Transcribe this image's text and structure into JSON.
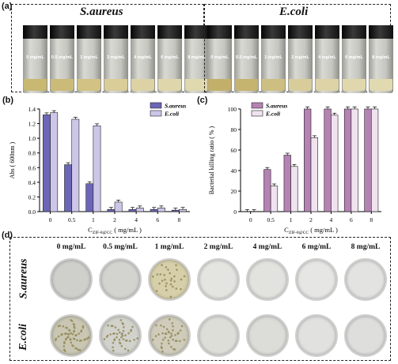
{
  "panels": {
    "a": "(a)",
    "b": "(b)",
    "c": "(c)",
    "d": "(d)"
  },
  "strains": {
    "aureus": "S.aureus",
    "coli": "E.coli"
  },
  "vial_concentrations": [
    "0 mg/mL",
    "0.5 mg/mL",
    "1 mg/mL",
    "2 mg/mL",
    "4 mg/mL",
    "6 mg/mL",
    "8 mg/mL"
  ],
  "plate_concentrations": [
    "0 mg/mL",
    "0.5 mg/mL",
    "1 mg/mL",
    "2 mg/mL",
    "4 mg/mL",
    "6 mg/mL",
    "8 mg/mL"
  ],
  "colors": {
    "aureus_bar": "#6b66b8",
    "coli_bar": "#cdc6e8",
    "killing_aureus": "#b582b4",
    "killing_coli": "#f0e3ef",
    "aureus_liquid": [
      "#c8b872",
      "#cbbb78",
      "#d2c283",
      "#d9cd98",
      "#dcd2a3",
      "#dfd6ab",
      "#e0d8ae"
    ],
    "coli_liquid": [
      "#c2b06a",
      "#c5b370",
      "#cdbf82",
      "#d8cd9a",
      "#ddd3a6",
      "#e0d7ad",
      "#e1d9b0"
    ]
  },
  "chart_data": [
    {
      "type": "bar",
      "categories": [
        "0",
        "0.5",
        "1",
        "2",
        "4",
        "6",
        "8"
      ],
      "series": [
        {
          "name": "S.aureus",
          "values": [
            1.32,
            0.64,
            0.38,
            0.03,
            0.03,
            0.03,
            0.02
          ]
        },
        {
          "name": "E.coli",
          "values": [
            1.35,
            1.26,
            1.17,
            0.13,
            0.05,
            0.05,
            0.03
          ]
        }
      ],
      "ylabel": "Abs ( 600nm )",
      "xlabel_main": "C",
      "xlabel_sub": "ZIF-8@CC",
      "xlabel_unit": " ( mg/mL )",
      "ylim": [
        0,
        1.4
      ],
      "yticks": [
        "0.0",
        "0.2",
        "0.4",
        "0.6",
        "0.8",
        "1.0",
        "1.2",
        "1.4"
      ],
      "legend": "top-right"
    },
    {
      "type": "bar",
      "categories": [
        "0",
        "0.5",
        "1",
        "2",
        "4",
        "6",
        "8"
      ],
      "series": [
        {
          "name": "S.aureus",
          "values": [
            0,
            41,
            55,
            100,
            100,
            100,
            100
          ]
        },
        {
          "name": "E.coli",
          "values": [
            0,
            25,
            44,
            72,
            94,
            100,
            100
          ]
        }
      ],
      "ylabel": "Bacterial killing ratio ( % )",
      "xlabel_main": "C",
      "xlabel_sub": "ZIF-8@CC",
      "xlabel_unit": " ( mg/mL )",
      "ylim": [
        0,
        100
      ],
      "yticks": [
        "0",
        "20",
        "40",
        "60",
        "80",
        "100"
      ],
      "legend": "top-left"
    }
  ]
}
